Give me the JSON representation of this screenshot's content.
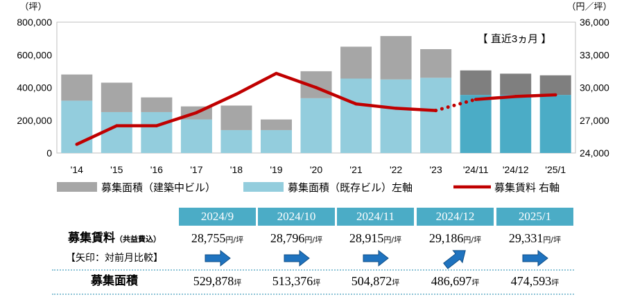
{
  "chart_data": {
    "type": "bar",
    "stacked": true,
    "categories": [
      "'14",
      "'15",
      "'16",
      "'17",
      "'18",
      "'19",
      "'20",
      "'21",
      "'22",
      "'23",
      "'24/11",
      "'24/12",
      "'25/1"
    ],
    "series": [
      {
        "name": "募集面積（建築中ビル）",
        "type": "bar",
        "axis": "left",
        "stack_position": "top",
        "values": [
          160000,
          180000,
          90000,
          80000,
          150000,
          65000,
          165000,
          195000,
          265000,
          175000,
          150000,
          130000,
          120000
        ],
        "colors": [
          "#A6A6A6",
          "#A6A6A6",
          "#A6A6A6",
          "#A6A6A6",
          "#A6A6A6",
          "#A6A6A6",
          "#A6A6A6",
          "#A6A6A6",
          "#A6A6A6",
          "#A6A6A6",
          "#7F7F7F",
          "#7F7F7F",
          "#7F7F7F"
        ]
      },
      {
        "name": "募集面積（既存ビル）左軸",
        "type": "bar",
        "axis": "left",
        "stack_position": "bottom",
        "values": [
          320000,
          250000,
          250000,
          205000,
          140000,
          140000,
          335000,
          455000,
          450000,
          460000,
          355000,
          355000,
          355000
        ],
        "colors": [
          "#93CDDD",
          "#93CDDD",
          "#93CDDD",
          "#93CDDD",
          "#93CDDD",
          "#93CDDD",
          "#93CDDD",
          "#93CDDD",
          "#93CDDD",
          "#93CDDD",
          "#4BACC6",
          "#4BACC6",
          "#4BACC6"
        ]
      },
      {
        "name": "募集賃料 右軸",
        "type": "line",
        "axis": "right",
        "color": "#C00000",
        "values": [
          24800,
          26500,
          26500,
          27700,
          29400,
          31300,
          30000,
          28500,
          28100,
          27900,
          28915,
          29186,
          29331
        ],
        "segment_styles": [
          "solid",
          "solid",
          "solid",
          "solid",
          "solid",
          "solid",
          "solid",
          "solid",
          "solid",
          "dotted",
          "solid",
          "solid"
        ]
      }
    ],
    "left_axis": {
      "unit": "（坪）",
      "min": 0,
      "max": 800000,
      "ticks": [
        0,
        200000,
        400000,
        600000,
        800000
      ]
    },
    "right_axis": {
      "unit": "（円／坪）",
      "min": 24000,
      "max": 36000,
      "ticks": [
        24000,
        27000,
        30000,
        33000,
        36000
      ]
    },
    "annotation": "【 直近3ヵ月 】",
    "grid": false,
    "legend_position": "bottom"
  },
  "table": {
    "header_color": "#4BACC6",
    "months": [
      "2024/9",
      "2024/10",
      "2024/11",
      "2024/12",
      "2025/1"
    ],
    "rent_label": "募集賃料",
    "rent_label_note": "（共益費込）",
    "rent_values": [
      "28,755",
      "28,796",
      "28,915",
      "29,186",
      "29,331"
    ],
    "rent_unit": "円/坪",
    "arrow_label": "【矢印：対前月比較】",
    "arrows": [
      "arrow-right-icon",
      "arrow-right-icon",
      "arrow-right-icon",
      "arrow-up-right-icon",
      "arrow-right-icon"
    ],
    "arrow_color": "#1F73BF",
    "area_label": "募集面積",
    "area_values": [
      "529,878",
      "513,376",
      "504,872",
      "486,697",
      "474,593"
    ],
    "area_unit": "坪"
  }
}
